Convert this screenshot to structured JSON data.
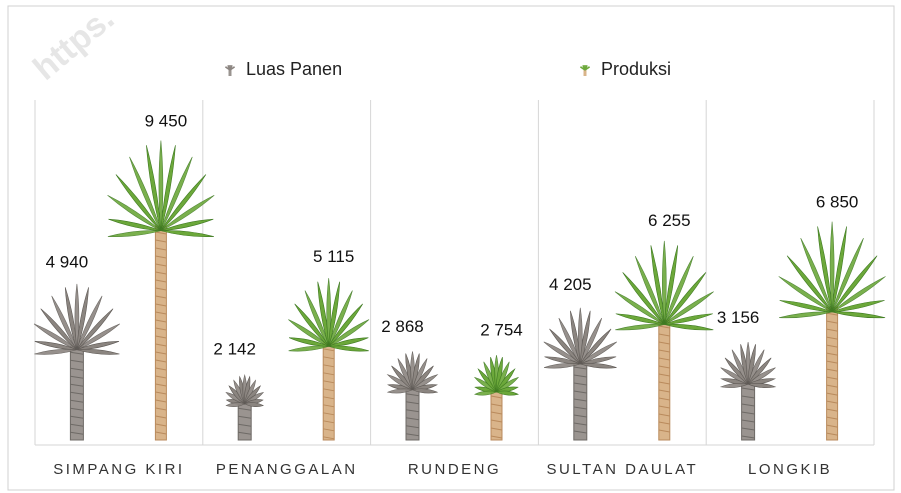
{
  "chart_data": {
    "type": "pictograph-bar",
    "watermark": "https.",
    "categories": [
      "SIMPANG KIRI",
      "PENANGGALAN",
      "RUNDENG",
      "SULTAN DAULAT",
      "LONGKIB"
    ],
    "series": [
      {
        "name": "Luas Panen",
        "color": "#8b8580",
        "values": [
          4940,
          2142,
          2868,
          4205,
          3156
        ],
        "value_labels": [
          "4 940",
          "2 142",
          "2 868",
          "4 205",
          "3 156"
        ]
      },
      {
        "name": "Produksi",
        "color": "#6ca83a",
        "values": [
          9450,
          5115,
          2754,
          6255,
          6850
        ],
        "value_labels": [
          "9 450",
          "5 115",
          "2 754",
          "6 255",
          "6 850"
        ]
      }
    ]
  }
}
